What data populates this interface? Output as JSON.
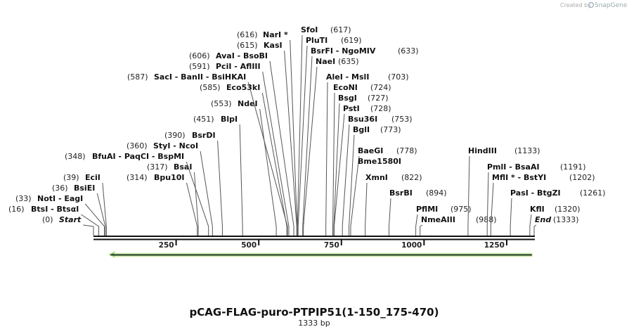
{
  "watermark": {
    "prefix": "Created by",
    "brand": "SnapGene"
  },
  "title": "pCAG-FLAG-puro-PTPIP51(1-150_175-470)",
  "length": "1333 bp",
  "ruler": {
    "range": [
      0,
      1333
    ],
    "ticks": [
      250,
      500,
      750,
      1000,
      1250
    ]
  },
  "sites": [
    {
      "name": "Start",
      "position": {
        "value": 0,
        "label": "(0)"
      }
    },
    {
      "name": "BtsI - BtsαI",
      "position": {
        "value": 16,
        "label": "(16)"
      }
    },
    {
      "name": "NotI - EagI",
      "position": {
        "value": 33,
        "label": "(33)"
      }
    },
    {
      "name": "BsiEI",
      "position": {
        "value": 36,
        "label": "(36)"
      }
    },
    {
      "name": "EciI",
      "position": {
        "value": 39,
        "label": "(39)"
      }
    },
    {
      "name": "Bpu10I",
      "position": {
        "value": 314,
        "label": "(314)"
      }
    },
    {
      "name": "BsaI",
      "position": {
        "value": 317,
        "label": "(317)"
      }
    },
    {
      "name": "BfuAI - PaqCI - BspMI",
      "position": {
        "value": 348,
        "label": "(348)"
      }
    },
    {
      "name": "StyI - NcoI",
      "position": {
        "value": 360,
        "label": "(360)"
      }
    },
    {
      "name": "BsrDI",
      "position": {
        "value": 390,
        "label": "(390)"
      }
    },
    {
      "name": "BlpI",
      "position": {
        "value": 451,
        "label": "(451)"
      }
    },
    {
      "name": "NdeI",
      "position": {
        "value": 553,
        "label": "(553)"
      }
    },
    {
      "name": "Eco53kI",
      "position": {
        "value": 585,
        "label": "(585)"
      }
    },
    {
      "name": "SacI - BanII - BsiHKAI",
      "position": {
        "value": 587,
        "label": "(587)"
      }
    },
    {
      "name": "PciI - AflIII",
      "position": {
        "value": 591,
        "label": "(591)"
      }
    },
    {
      "name": "AvaI - BsoBI",
      "position": {
        "value": 606,
        "label": "(606)"
      }
    },
    {
      "name": "KasI",
      "position": {
        "value": 615,
        "label": "(615)"
      }
    },
    {
      "name": "NarI *",
      "position": {
        "value": 616,
        "label": "(616)"
      }
    },
    {
      "name": "SfoI",
      "position": {
        "value": 617,
        "label": "(617)"
      }
    },
    {
      "name": "PluTI",
      "position": {
        "value": 619,
        "label": "(619)"
      }
    },
    {
      "name": "BsrFI - NgoMIV",
      "position": {
        "value": 633,
        "label": "(633)"
      }
    },
    {
      "name": "NaeI",
      "position": {
        "value": 635,
        "label": "(635)"
      }
    },
    {
      "name": "AleI - MslI",
      "position": {
        "value": 703,
        "label": "(703)"
      }
    },
    {
      "name": "EcoNI",
      "position": {
        "value": 724,
        "label": "(724)"
      }
    },
    {
      "name": "BsgI",
      "position": {
        "value": 727,
        "label": "(727)"
      }
    },
    {
      "name": "PstI",
      "position": {
        "value": 728,
        "label": "(728)"
      }
    },
    {
      "name": "Bsu36I",
      "position": {
        "value": 753,
        "label": "(753)"
      }
    },
    {
      "name": "BglI",
      "position": {
        "value": 773,
        "label": "(773)"
      }
    },
    {
      "name": "BaeGI",
      "position": {
        "value": 778,
        "label": "(778)"
      }
    },
    {
      "name": "Bme1580I"
    },
    {
      "name": "XmnI",
      "position": {
        "value": 822,
        "label": "(822)"
      }
    },
    {
      "name": "BsrBI",
      "position": {
        "value": 894,
        "label": "(894)"
      }
    },
    {
      "name": "PflMI",
      "position": {
        "value": 975,
        "label": "(975)"
      }
    },
    {
      "name": "NmeAIII",
      "position": {
        "value": 988,
        "label": "(988)"
      }
    },
    {
      "name": "HindIII",
      "position": {
        "value": 1133,
        "label": "(1133)"
      }
    },
    {
      "name": "PmlI - BsaAI",
      "position": {
        "value": 1191,
        "label": "(1191)"
      }
    },
    {
      "name": "MflI * - BstYI",
      "position": {
        "value": 1202,
        "label": "(1202)"
      }
    },
    {
      "name": "PasI - BtgZI",
      "position": {
        "value": 1261,
        "label": "(1261)"
      }
    },
    {
      "name": "KflI",
      "position": {
        "value": 1320,
        "label": "(1320)"
      }
    },
    {
      "name": "End",
      "position": {
        "value": 1333,
        "label": "(1333)"
      }
    }
  ]
}
